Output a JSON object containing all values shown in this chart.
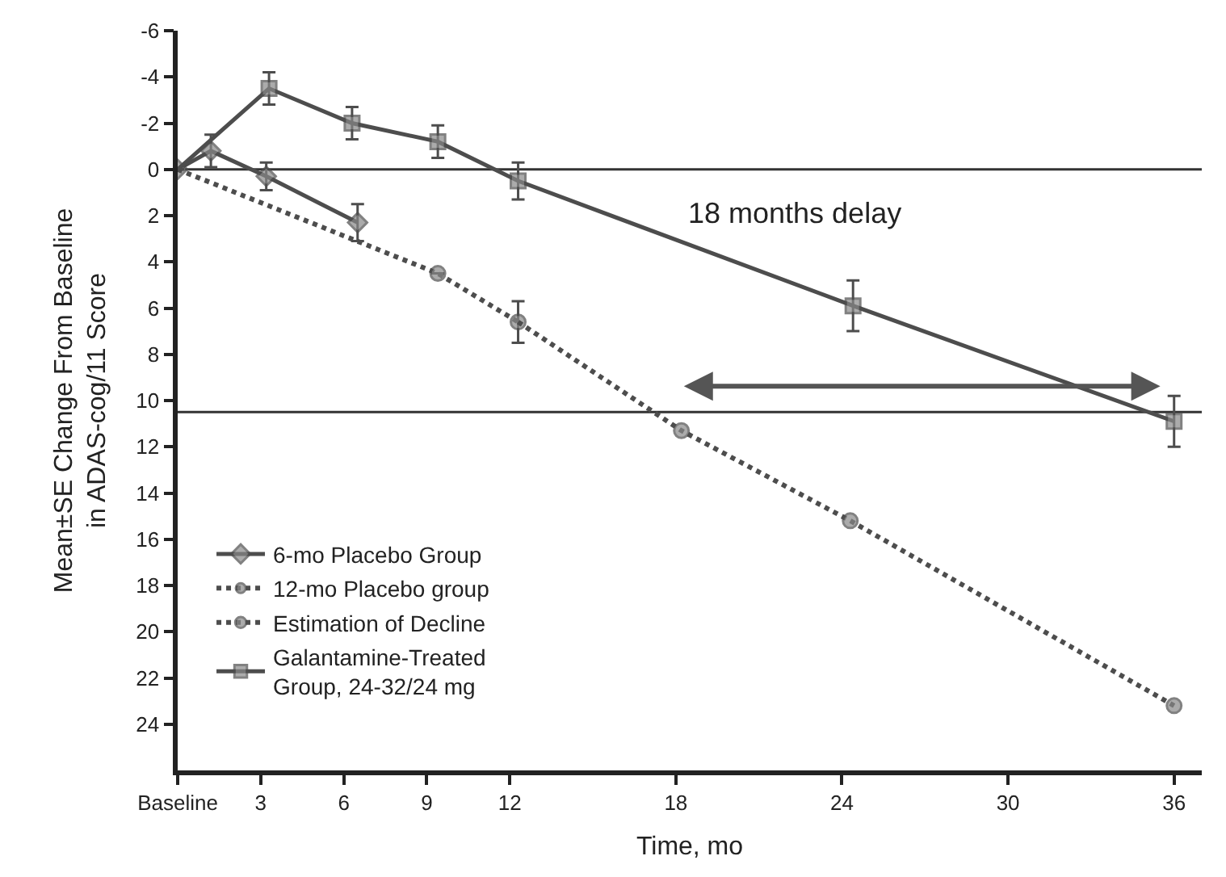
{
  "chart_data": {
    "type": "line",
    "xlabel": "Time, mo",
    "ylabel": "Mean±SE Change From Baseline\nin ADAS-cog/11 Score",
    "xlim": [
      0,
      37
    ],
    "xticks": [
      {
        "value": 0,
        "label": "Baseline"
      },
      3,
      6,
      9,
      12,
      18,
      24,
      30,
      36
    ],
    "ylim": [
      26,
      -6
    ],
    "yticks": [
      -6,
      -4,
      -2,
      0,
      2,
      4,
      6,
      8,
      10,
      12,
      14,
      16,
      18,
      20,
      22,
      24
    ],
    "grid": false,
    "legend": "bottom left",
    "series": [
      {
        "name": "6-mo Placebo Group",
        "color": "#4d4d4d",
        "marker": "diamond",
        "line_style": "solid",
        "x": [
          0,
          1.2,
          3.2,
          6.5
        ],
        "values": [
          0,
          -0.8,
          0.3,
          2.3
        ],
        "errors": [
          null,
          0.7,
          0.6,
          0.8
        ]
      },
      {
        "name": "12-mo Placebo group",
        "color": "#4d4d4d",
        "marker": "circle",
        "line_style": "dotted",
        "x": [
          0,
          9.4,
          12.3
        ],
        "values": [
          0,
          4.5,
          6.6
        ],
        "errors": [
          null,
          null,
          0.9
        ]
      },
      {
        "name": "Estimation of Decline",
        "color": "#4d4d4d",
        "marker": "circle",
        "line_style": "dotted",
        "x": [
          12.3,
          18.2,
          24.3,
          36
        ],
        "values": [
          6.6,
          11.3,
          15.2,
          23.2
        ]
      },
      {
        "name": "Galantamine-Treated\nGroup, 24-32/24 mg",
        "color": "#4d4d4d",
        "marker": "square",
        "line_style": "solid",
        "x": [
          0,
          3.3,
          6.3,
          9.4,
          12.3,
          24.4,
          36
        ],
        "values": [
          0,
          -3.5,
          -2.0,
          -1.2,
          0.5,
          5.9,
          10.9
        ],
        "errors": [
          null,
          0.7,
          0.7,
          0.7,
          0.8,
          1.1,
          1.1
        ]
      }
    ],
    "ref_lines": [
      {
        "axis": "y",
        "value": 0,
        "color": "#333333"
      },
      {
        "axis": "y",
        "value": 10.5,
        "color": "#333333"
      }
    ],
    "annotations": [
      "18 months delay"
    ]
  }
}
